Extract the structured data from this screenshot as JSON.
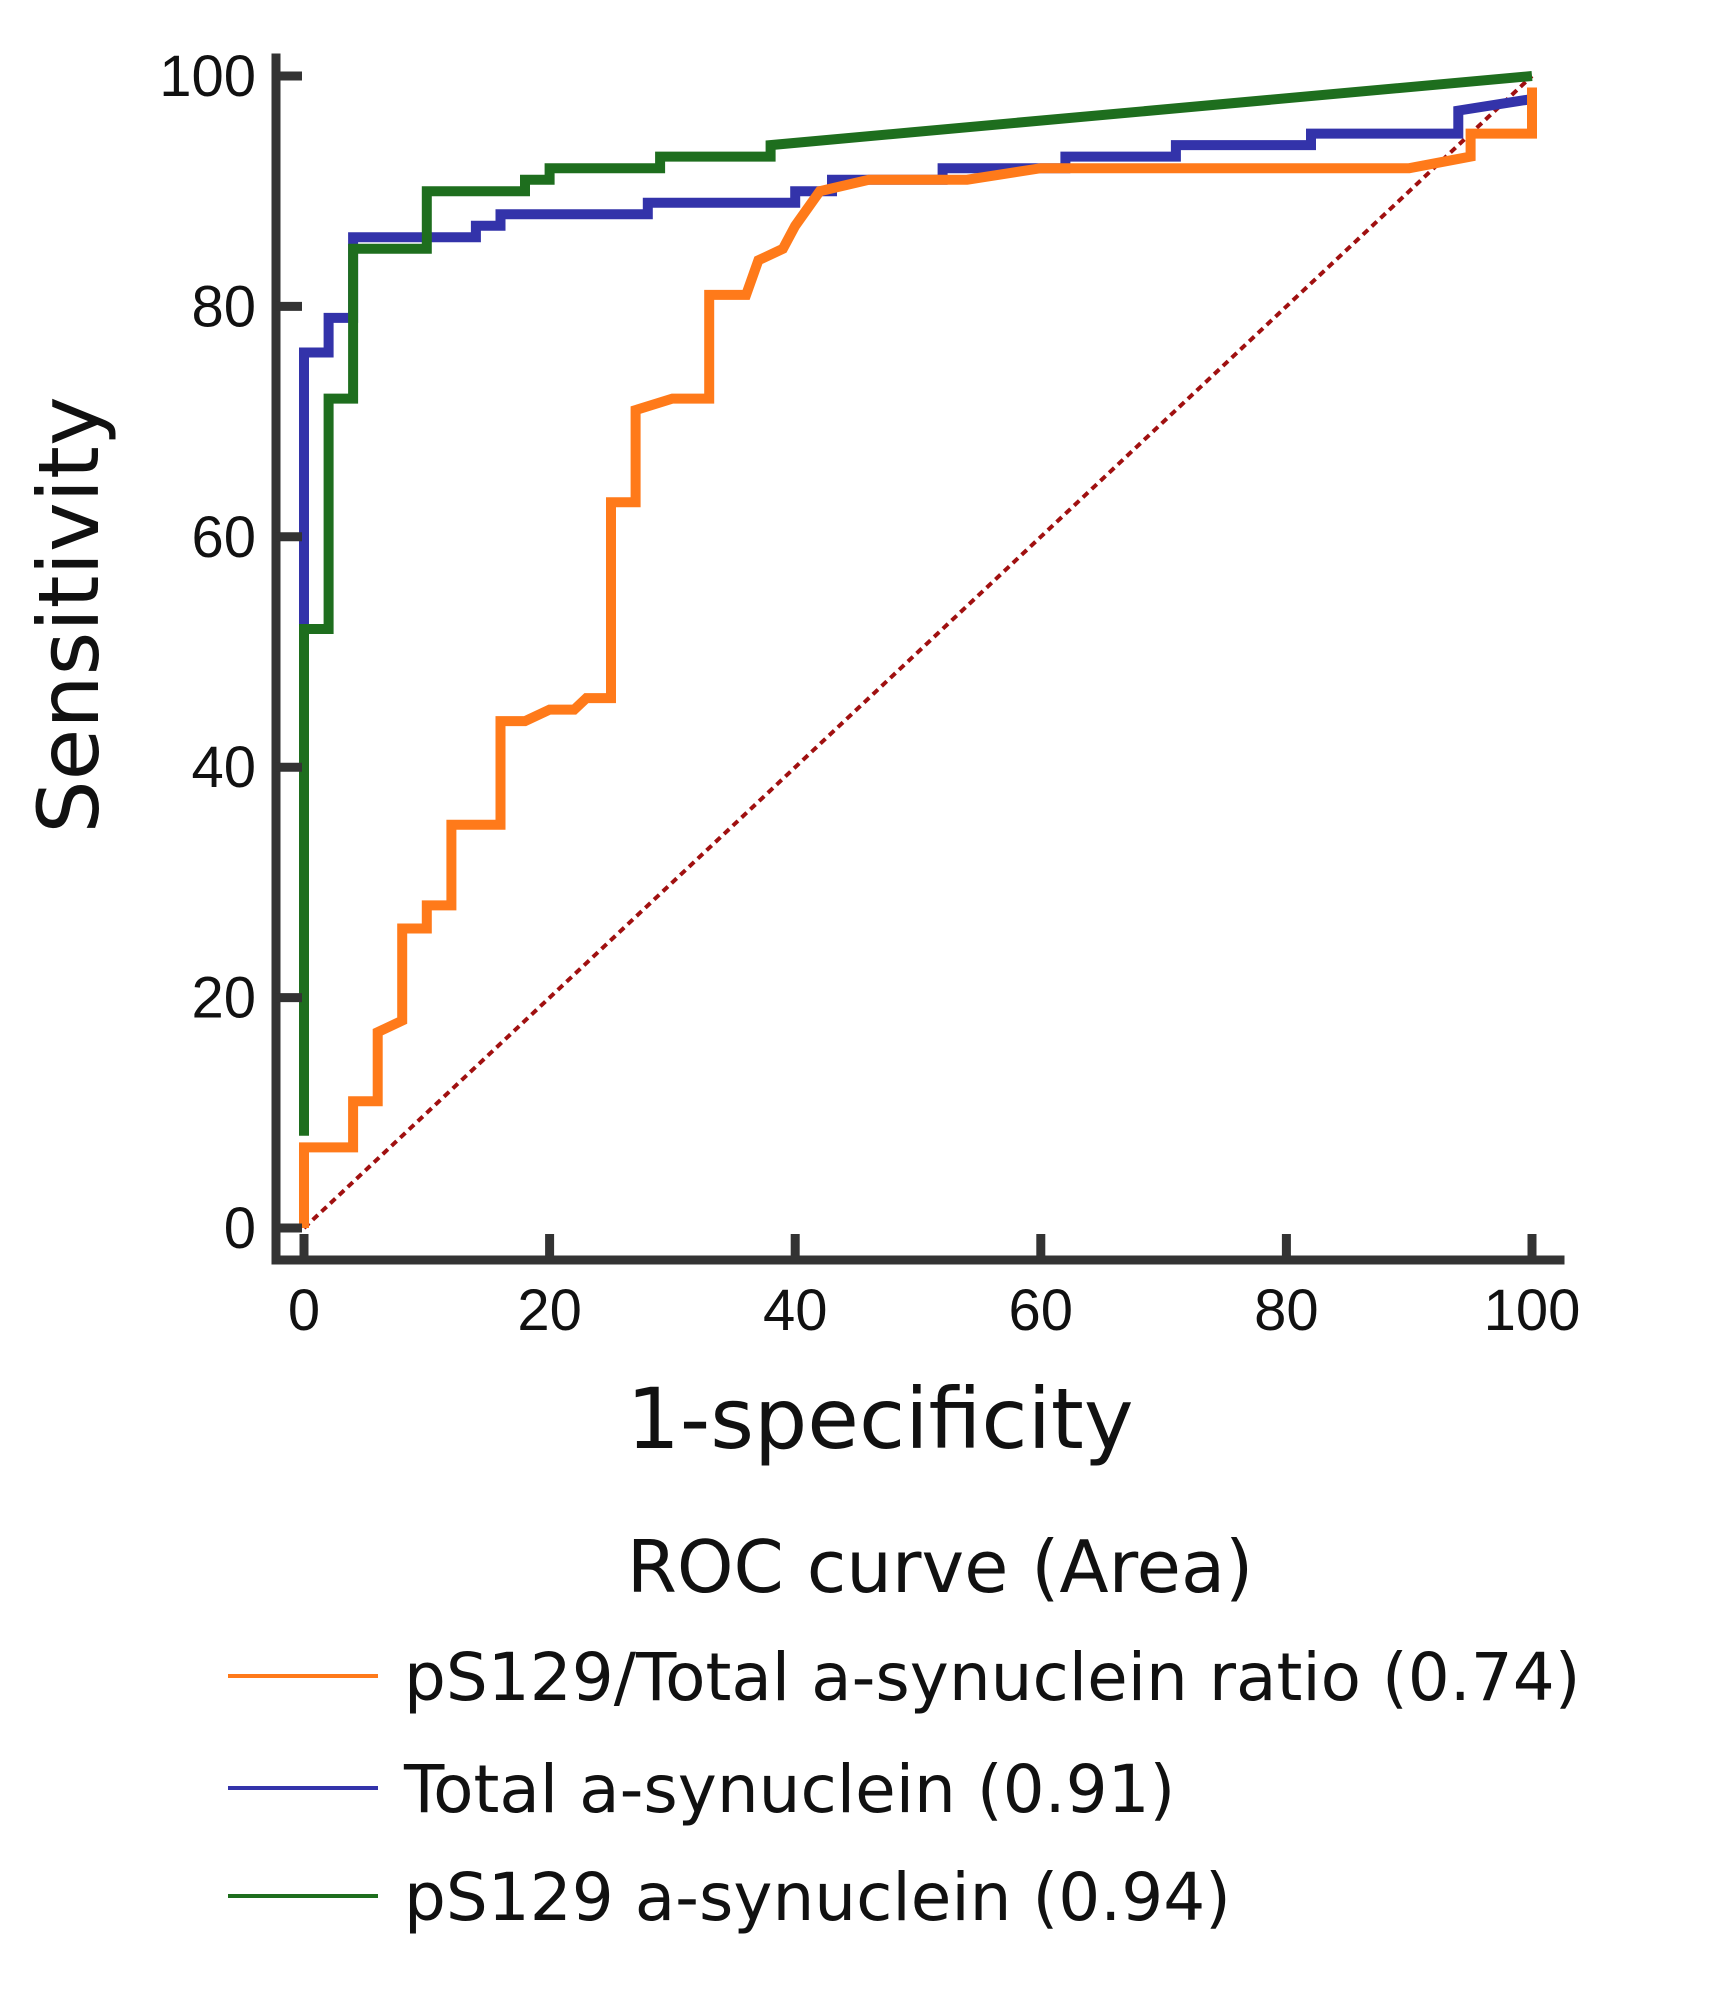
{
  "chart_data": {
    "type": "line",
    "title": "",
    "xlabel": "1-specificity",
    "ylabel": "Sensitivity",
    "xlim": [
      0,
      100
    ],
    "ylim": [
      0,
      100
    ],
    "xticks": [
      0,
      20,
      40,
      60,
      80,
      100
    ],
    "yticks": [
      0,
      20,
      40,
      60,
      80,
      100
    ],
    "grid": false,
    "legend_title": "ROC curve (Area)",
    "legend_position": "bottom",
    "reference_line": {
      "name": "chance",
      "color": "#a01010",
      "style": "dashed",
      "x": [
        0,
        100
      ],
      "y": [
        0,
        100
      ]
    },
    "series": [
      {
        "key": "ratio",
        "name": "pS129/Total a-synuclein ratio (0.74)",
        "color": "#ff7a1a",
        "x": [
          0,
          0,
          4,
          4,
          6,
          6,
          8,
          8,
          10,
          10,
          12,
          12,
          16,
          16,
          18,
          20,
          22,
          23,
          25,
          25,
          27,
          27,
          30,
          33,
          33,
          36,
          37,
          39,
          40,
          42,
          46,
          54,
          60,
          72,
          90,
          95,
          95,
          100,
          100
        ],
        "y": [
          0,
          7,
          7,
          11,
          11,
          17,
          18,
          26,
          26,
          28,
          28,
          35,
          35,
          44,
          44,
          45,
          45,
          46,
          46,
          63,
          63,
          71,
          72,
          72,
          81,
          81,
          84,
          85,
          87,
          90,
          91,
          91,
          92,
          92,
          92,
          93,
          95,
          95,
          99
        ]
      },
      {
        "key": "total",
        "name": "Total a-synuclein (0.91)",
        "color": "#3333aa",
        "x": [
          0,
          0,
          2,
          2,
          4,
          4,
          14,
          14,
          16,
          16,
          28,
          28,
          40,
          40,
          43,
          43,
          52,
          52,
          62,
          62,
          71,
          71,
          82,
          82,
          94,
          94,
          100
        ],
        "y": [
          52,
          76,
          76,
          79,
          79,
          86,
          86,
          87,
          87,
          88,
          88,
          89,
          89,
          90,
          90,
          91,
          91,
          92,
          92,
          93,
          93,
          94,
          94,
          95,
          95,
          97,
          98
        ]
      },
      {
        "key": "ps129",
        "name": "pS129 a-synuclein (0.94)",
        "color": "#1e6e1e",
        "x": [
          0,
          0,
          2,
          2,
          4,
          4,
          10,
          10,
          18,
          18,
          20,
          20,
          29,
          29,
          38,
          38,
          100
        ],
        "y": [
          8,
          52,
          52,
          72,
          72,
          85,
          85,
          90,
          90,
          91,
          91,
          92,
          92,
          93,
          93,
          94,
          100
        ]
      }
    ]
  }
}
